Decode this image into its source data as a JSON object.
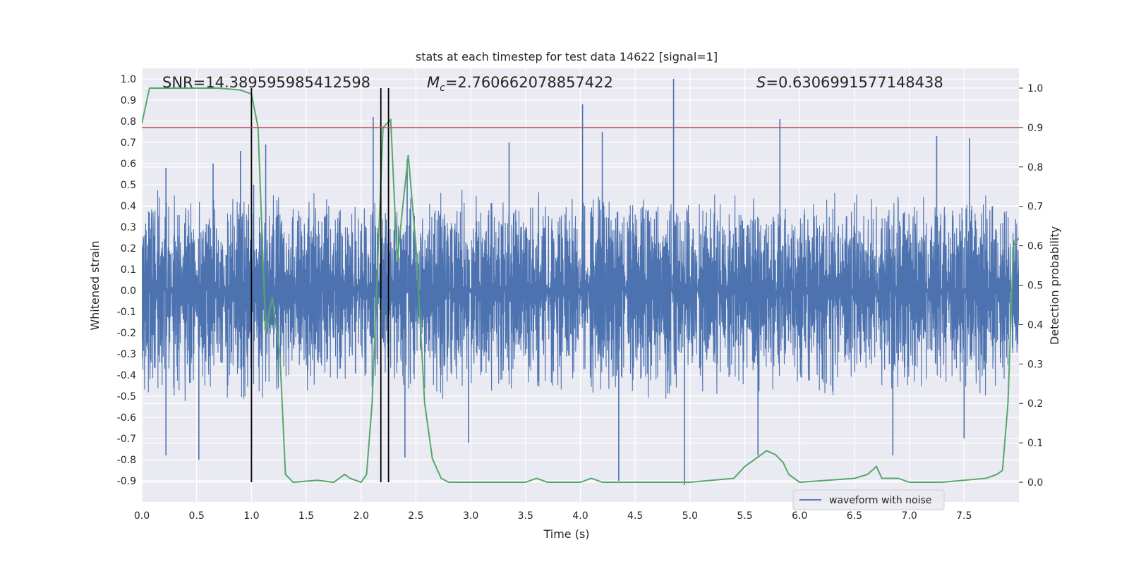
{
  "chart_data": {
    "type": "line",
    "title": "stats at each timestep for test data 14622 [signal=1]",
    "xlabel": "Time (s)",
    "ylabel_left": "Whitened strain",
    "ylabel_right": "Detection probability",
    "xlim": [
      0.0,
      8.0
    ],
    "ylim_left": [
      -1.0,
      1.05
    ],
    "ylim_right": [
      -0.05,
      1.05
    ],
    "x_ticks": [
      "0.0",
      "0.5",
      "1.0",
      "1.5",
      "2.0",
      "2.5",
      "3.0",
      "3.5",
      "4.0",
      "4.5",
      "5.0",
      "5.5",
      "6.0",
      "6.5",
      "7.0",
      "7.5"
    ],
    "x_tick_values": [
      0.0,
      0.5,
      1.0,
      1.5,
      2.0,
      2.5,
      3.0,
      3.5,
      4.0,
      4.5,
      5.0,
      5.5,
      6.0,
      6.5,
      7.0,
      7.5
    ],
    "y_ticks_left": [
      "1.0",
      "0.9",
      "0.8",
      "0.7",
      "0.6",
      "0.5",
      "0.4",
      "0.3",
      "0.2",
      "0.1",
      "0.0",
      "-0.1",
      "-0.2",
      "-0.3",
      "-0.4",
      "-0.5",
      "-0.6",
      "-0.7",
      "-0.8",
      "-0.9"
    ],
    "y_tick_values_left": [
      1.0,
      0.9,
      0.8,
      0.7,
      0.6,
      0.5,
      0.4,
      0.3,
      0.2,
      0.1,
      0.0,
      -0.1,
      -0.2,
      -0.3,
      -0.4,
      -0.5,
      -0.6,
      -0.7,
      -0.8,
      -0.9
    ],
    "y_ticks_right": [
      "1.0",
      "0.9",
      "0.8",
      "0.7",
      "0.6",
      "0.5",
      "0.4",
      "0.3",
      "0.2",
      "0.1",
      "0.0"
    ],
    "y_tick_values_right": [
      1.0,
      0.9,
      0.8,
      0.7,
      0.6,
      0.5,
      0.4,
      0.3,
      0.2,
      0.1,
      0.0
    ],
    "annotations": {
      "snr": "SNR=14.389595985412598",
      "mc_symbol": "M",
      "mc_sub": "c",
      "mc_value": "=2.760662078857422",
      "s_symbol": "S",
      "s_value": "=0.6306991577148438"
    },
    "legend": {
      "label": "waveform with noise",
      "position": "lower-right"
    },
    "threshold": {
      "value": 0.9,
      "axis": "right",
      "color": "#c44e52"
    },
    "vertical_lines": [
      1.0,
      2.18,
      2.25
    ],
    "waveform": {
      "name": "waveform with noise",
      "color": "#4c72b0",
      "dense_band": [
        -0.3,
        0.25
      ],
      "typical_upper": 0.45,
      "typical_lower": -0.5,
      "peaks": [
        {
          "x": 0.22,
          "y": 0.58
        },
        {
          "x": 0.65,
          "y": 0.6
        },
        {
          "x": 0.9,
          "y": 0.66
        },
        {
          "x": 1.02,
          "y": 0.5
        },
        {
          "x": 1.13,
          "y": 0.69
        },
        {
          "x": 2.11,
          "y": 0.82
        },
        {
          "x": 2.25,
          "y": 0.78
        },
        {
          "x": 2.42,
          "y": 0.62
        },
        {
          "x": 3.35,
          "y": 0.7
        },
        {
          "x": 4.02,
          "y": 0.88
        },
        {
          "x": 4.2,
          "y": 0.75
        },
        {
          "x": 4.85,
          "y": 1.0
        },
        {
          "x": 5.82,
          "y": 0.81
        },
        {
          "x": 7.25,
          "y": 0.73
        },
        {
          "x": 7.55,
          "y": 0.72
        }
      ],
      "troughs": [
        {
          "x": 0.22,
          "y": -0.78
        },
        {
          "x": 0.52,
          "y": -0.8
        },
        {
          "x": 1.0,
          "y": -0.75
        },
        {
          "x": 2.4,
          "y": -0.79
        },
        {
          "x": 2.98,
          "y": -0.72
        },
        {
          "x": 4.35,
          "y": -0.9
        },
        {
          "x": 4.95,
          "y": -0.92
        },
        {
          "x": 5.62,
          "y": -0.78
        },
        {
          "x": 6.85,
          "y": -0.78
        },
        {
          "x": 7.5,
          "y": -0.7
        }
      ]
    },
    "detection_probability": {
      "name": "detection probability",
      "color": "#55a868",
      "axis": "right",
      "x": [
        0.0,
        0.07,
        0.3,
        0.7,
        0.9,
        0.95,
        1.0,
        1.06,
        1.13,
        1.19,
        1.26,
        1.31,
        1.38,
        1.6,
        1.75,
        1.85,
        1.9,
        2.0,
        2.05,
        2.1,
        2.2,
        2.27,
        2.33,
        2.38,
        2.43,
        2.5,
        2.58,
        2.65,
        2.73,
        2.8,
        3.0,
        3.5,
        3.6,
        3.7,
        4.0,
        4.1,
        4.2,
        4.3,
        4.5,
        5.0,
        5.4,
        5.5,
        5.7,
        5.78,
        5.85,
        5.9,
        6.0,
        6.5,
        6.62,
        6.7,
        6.75,
        6.9,
        7.0,
        7.3,
        7.7,
        7.8,
        7.85,
        7.9,
        7.95,
        8.0
      ],
      "y": [
        0.91,
        1.0,
        1.0,
        1.0,
        0.995,
        0.99,
        0.985,
        0.9,
        0.38,
        0.47,
        0.32,
        0.02,
        0.0,
        0.005,
        0.0,
        0.02,
        0.01,
        0.0,
        0.02,
        0.2,
        0.9,
        0.92,
        0.56,
        0.7,
        0.83,
        0.6,
        0.2,
        0.06,
        0.01,
        0.0,
        0.0,
        0.0,
        0.01,
        0.0,
        0.0,
        0.01,
        0.0,
        0.0,
        0.0,
        0.0,
        0.01,
        0.04,
        0.08,
        0.07,
        0.05,
        0.02,
        0.0,
        0.01,
        0.02,
        0.04,
        0.01,
        0.01,
        0.0,
        0.0,
        0.01,
        0.02,
        0.03,
        0.2,
        0.6,
        0.62
      ]
    }
  }
}
